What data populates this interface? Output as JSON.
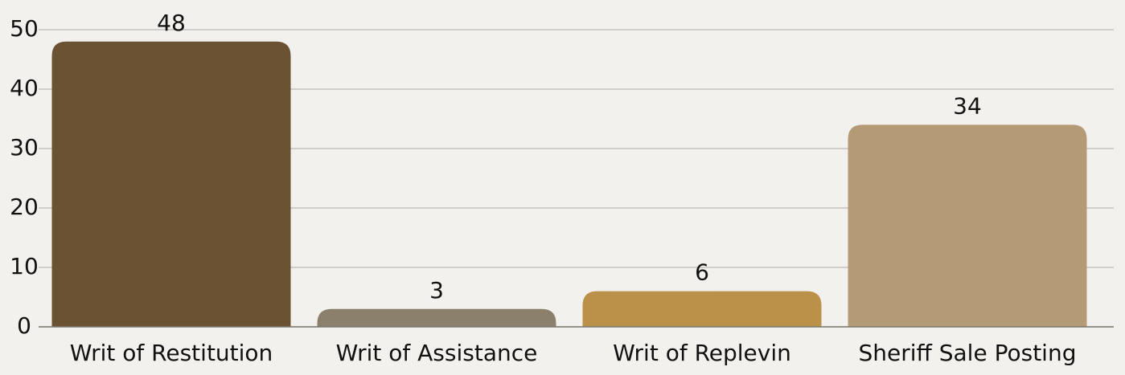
{
  "chart_data": {
    "type": "bar",
    "categories": [
      "Writ of Restitution",
      "Writ of Assistance",
      "Writ of Replevin",
      "Sheriff Sale Posting"
    ],
    "values": [
      48,
      3,
      6,
      34
    ],
    "colors": [
      "#6a5233",
      "#8b806b",
      "#bb9049",
      "#b49a75"
    ],
    "ylim": [
      0,
      50
    ],
    "yticks": [
      0,
      10,
      20,
      30,
      40,
      50
    ],
    "grid": true
  }
}
